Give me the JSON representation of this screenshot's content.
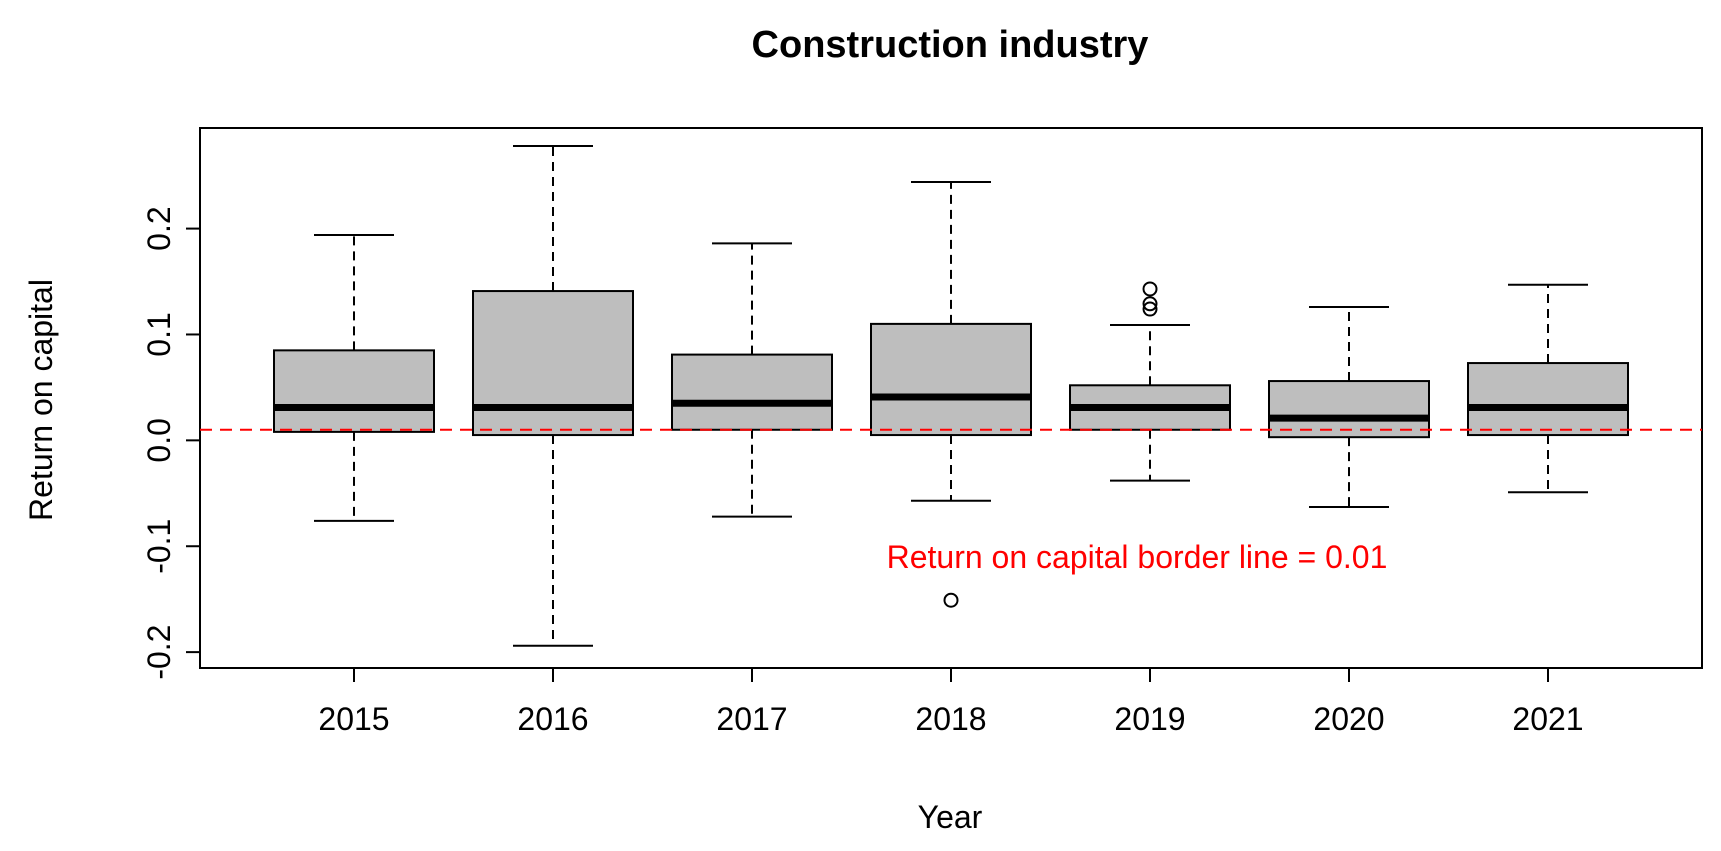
{
  "chart_data": {
    "type": "box",
    "title": "Construction industry",
    "xlabel": "Year",
    "ylabel": "Return on capital",
    "categories": [
      "2015",
      "2016",
      "2017",
      "2018",
      "2019",
      "2020",
      "2021"
    ],
    "ylim": [
      -0.215,
      0.295
    ],
    "yticks": [
      -0.2,
      -0.1,
      0.0,
      0.1,
      0.2
    ],
    "ytick_labels": [
      "-0.2",
      "-0.1",
      "0.0",
      "0.1",
      "0.2"
    ],
    "boxes": [
      {
        "category": "2015",
        "whisker_low": -0.076,
        "q1": 0.008,
        "median": 0.031,
        "q3": 0.085,
        "whisker_high": 0.194,
        "outliers": []
      },
      {
        "category": "2016",
        "whisker_low": -0.194,
        "q1": 0.005,
        "median": 0.031,
        "q3": 0.141,
        "whisker_high": 0.278,
        "outliers": []
      },
      {
        "category": "2017",
        "whisker_low": -0.072,
        "q1": 0.01,
        "median": 0.035,
        "q3": 0.081,
        "whisker_high": 0.186,
        "outliers": []
      },
      {
        "category": "2018",
        "whisker_low": -0.057,
        "q1": 0.005,
        "median": 0.041,
        "q3": 0.11,
        "whisker_high": 0.244,
        "outliers": [
          -0.151
        ]
      },
      {
        "category": "2019",
        "whisker_low": -0.038,
        "q1": 0.01,
        "median": 0.031,
        "q3": 0.052,
        "whisker_high": 0.109,
        "outliers": [
          0.143,
          0.129,
          0.124
        ]
      },
      {
        "category": "2020",
        "whisker_low": -0.063,
        "q1": 0.003,
        "median": 0.021,
        "q3": 0.056,
        "whisker_high": 0.126,
        "outliers": []
      },
      {
        "category": "2021",
        "whisker_low": -0.049,
        "q1": 0.005,
        "median": 0.031,
        "q3": 0.073,
        "whisker_high": 0.147,
        "outliers": []
      }
    ],
    "reference_line": {
      "value": 0.01,
      "color": "#ff0000",
      "style": "dashed"
    },
    "annotation": {
      "text": "Return on capital border line = 0.01",
      "x_category": "2018.95",
      "y": -0.108,
      "color": "#ff0000"
    },
    "box_fill": "#bebebe",
    "grid": false,
    "legend": "none"
  }
}
